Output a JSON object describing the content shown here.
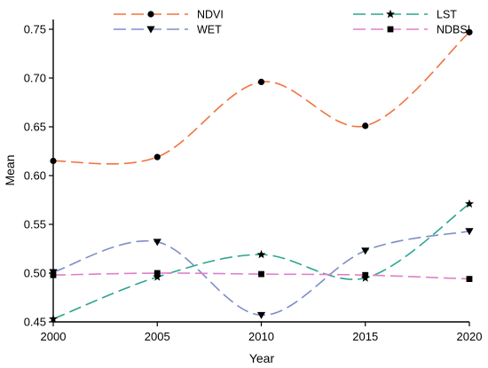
{
  "chart_data": {
    "type": "line",
    "xlabel": "Year",
    "ylabel": "Mean",
    "x": [
      2000,
      2005,
      2010,
      2015,
      2020
    ],
    "xlim": [
      2000,
      2020
    ],
    "ylim": [
      0.45,
      0.76
    ],
    "xticks": [
      "2000",
      "2005",
      "2010",
      "2015",
      "2020"
    ],
    "yticks": [
      "0.45",
      "0.50",
      "0.55",
      "0.60",
      "0.65",
      "0.70",
      "0.75"
    ],
    "legend_position": "top",
    "grid": false,
    "series": [
      {
        "name": "NDVI",
        "values": [
          0.615,
          0.619,
          0.696,
          0.651,
          0.747
        ],
        "color": "#f0743e",
        "marker": "circle"
      },
      {
        "name": "LST",
        "values": [
          0.453,
          0.496,
          0.519,
          0.495,
          0.571
        ],
        "color": "#2aa58d",
        "marker": "star"
      },
      {
        "name": "WET",
        "values": [
          0.501,
          0.532,
          0.457,
          0.523,
          0.543
        ],
        "color": "#7e8dc8",
        "marker": "triangle-down"
      },
      {
        "name": "NDBSI",
        "values": [
          0.498,
          0.5,
          0.499,
          0.498,
          0.494
        ],
        "color": "#e07fc9",
        "marker": "square"
      }
    ]
  }
}
